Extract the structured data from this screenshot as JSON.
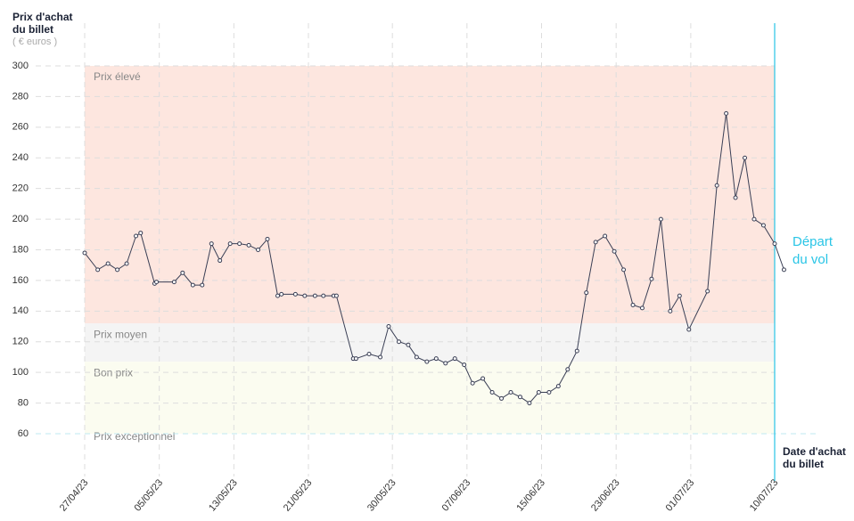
{
  "chart_data": {
    "type": "line",
    "y_title": "Prix d'achat du billet",
    "y_unit": "( € euros )",
    "x_title": "Date d'achat du billet",
    "color": "#3a3f55",
    "x": [
      0,
      1.4,
      2.5,
      3.5,
      4.5,
      5.5,
      6,
      7.5,
      7.7,
      9.6,
      10.5,
      11.6,
      12.6,
      13.6,
      14.5,
      15.6,
      16.6,
      17.6,
      18.6,
      19.6,
      20.7,
      21.1,
      22.6,
      23.6,
      24.7,
      25.6,
      26.7,
      27,
      28.8,
      29.1,
      30.5,
      31.7,
      32.6,
      33.7,
      34.7,
      35.6,
      36.7,
      37.7,
      38.7,
      39.7,
      40.7,
      41.6,
      42.7,
      43.7,
      44.7,
      45.7,
      46.7,
      47.7,
      48.7,
      49.8,
      50.8,
      51.8,
      52.8,
      53.8,
      54.8,
      55.8,
      56.8,
      57.8,
      58.8,
      59.8,
      60.8,
      61.8,
      62.8,
      63.8,
      64.8,
      66.8,
      67.8,
      68.8,
      69.8,
      70.8,
      71.8,
      72.8,
      74,
      75
    ],
    "values": [
      178,
      167,
      171,
      167,
      171,
      189,
      191,
      158,
      159,
      159,
      165,
      157,
      157,
      184,
      173,
      184,
      184,
      183,
      180,
      187,
      150,
      151,
      151,
      150,
      150,
      150,
      150,
      150,
      109,
      109,
      112,
      110,
      130,
      120,
      118,
      110,
      107,
      109,
      106,
      109,
      105,
      93,
      96,
      87,
      83,
      87,
      84,
      80,
      87,
      87,
      91,
      102,
      114,
      152,
      185,
      189,
      179,
      167,
      144,
      142,
      161,
      200,
      140,
      150,
      128,
      153,
      222,
      269,
      214,
      240,
      200,
      196,
      184,
      167
    ],
    "xlim": [
      0,
      74
    ],
    "xticks": [
      {
        "value": 0,
        "label": "27/04/23"
      },
      {
        "value": 8,
        "label": "05/05/23"
      },
      {
        "value": 16,
        "label": "13/05/23"
      },
      {
        "value": 24,
        "label": "21/05/23"
      },
      {
        "value": 33,
        "label": "30/05/23"
      },
      {
        "value": 41,
        "label": "07/06/23"
      },
      {
        "value": 49,
        "label": "15/06/23"
      },
      {
        "value": 57,
        "label": "23/06/23"
      },
      {
        "value": 65,
        "label": "01/07/23"
      },
      {
        "value": 74,
        "label": "10/07/23"
      }
    ],
    "ylim": [
      60,
      300
    ],
    "yticks": [
      60,
      80,
      100,
      120,
      140,
      160,
      180,
      200,
      220,
      240,
      260,
      280,
      300
    ],
    "grid": true,
    "zones": [
      {
        "label": "Prix élevé",
        "min": 132,
        "max": 300,
        "color": "#fde6df"
      },
      {
        "label": "Prix moyen",
        "min": 107,
        "max": 132,
        "color": "#f4f4f4"
      },
      {
        "label": "Bon prix",
        "min": 60,
        "max": 107,
        "color": "#fbfcf0"
      },
      {
        "label": "Prix exceptionnel",
        "max": 60
      }
    ],
    "departure": {
      "label": "Départ du vol",
      "x": 74,
      "color": "#29c5e6"
    }
  }
}
